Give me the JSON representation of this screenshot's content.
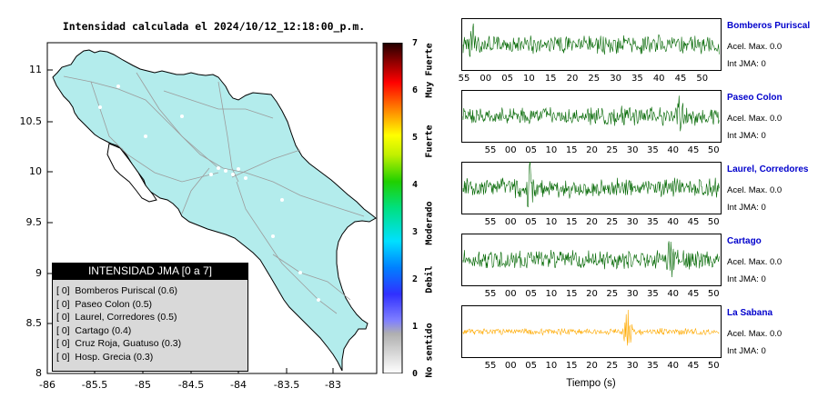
{
  "map": {
    "title": "Intensidad calculada el 2024/10/12_12:18:00_p.m.",
    "x_ticks": [
      "-86",
      "-85.5",
      "-85",
      "-84.5",
      "-84",
      "-83.5",
      "-83"
    ],
    "y_ticks": [
      "11",
      "10.5",
      "10",
      "9.5",
      "9",
      "8.5",
      "8"
    ],
    "land_color": "#b3ecec",
    "legend": {
      "title": "INTENSIDAD JMA [0 a 7]",
      "rows": [
        "[ 0]  Bomberos Puriscal (0.6)",
        "[ 0]  Paseo Colon (0.5)",
        "[ 0]  Laurel, Corredores (0.5)",
        "[ 0]  Cartago (0.4)",
        "[ 0]  Cruz Roja, Guatuso (0.3)",
        "[ 0]  Hosp. Grecia (0.3)"
      ]
    }
  },
  "colorbar": {
    "ticks": [
      "7",
      "6",
      "5",
      "4",
      "3",
      "2",
      "1",
      "0"
    ],
    "labels": [
      "Muy Fuerte",
      "Fuerte",
      "Moderado",
      "Debil",
      "No sentido"
    ]
  },
  "waveforms": {
    "xlabel": "Tiempo (s)",
    "stations": [
      {
        "name": "Bomberos Puriscal",
        "accel": "Acel. Max. 0.0",
        "jma": "Int JMA: 0",
        "color": "#006600",
        "ticks": [
          "55",
          "00",
          "05",
          "10",
          "15",
          "20",
          "25",
          "30",
          "35",
          "40",
          "45",
          "50"
        ]
      },
      {
        "name": "Paseo Colon",
        "accel": "Acel. Max. 0.0",
        "jma": "Int JMA: 0",
        "color": "#006600",
        "ticks": [
          "55",
          "00",
          "05",
          "10",
          "15",
          "20",
          "25",
          "30",
          "35",
          "40",
          "45",
          "50"
        ]
      },
      {
        "name": "Laurel, Corredores",
        "accel": "Acel. Max. 0.0",
        "jma": "Int JMA: 0",
        "color": "#006600",
        "ticks": [
          "55",
          "00",
          "05",
          "10",
          "15",
          "20",
          "25",
          "30",
          "35",
          "40",
          "45",
          "50"
        ]
      },
      {
        "name": "Cartago",
        "accel": "Acel. Max. 0.0",
        "jma": "Int JMA: 0",
        "color": "#006600",
        "ticks": [
          "55",
          "00",
          "05",
          "10",
          "15",
          "20",
          "25",
          "30",
          "35",
          "40",
          "45",
          "50"
        ]
      },
      {
        "name": "La Sabana",
        "accel": "Acel. Max. 0.0",
        "jma": "Int JMA: 0",
        "color": "#ffaa00",
        "ticks": [
          "55",
          "00",
          "05",
          "10",
          "15",
          "20",
          "25",
          "30",
          "35",
          "40",
          "45",
          "50"
        ]
      }
    ]
  }
}
